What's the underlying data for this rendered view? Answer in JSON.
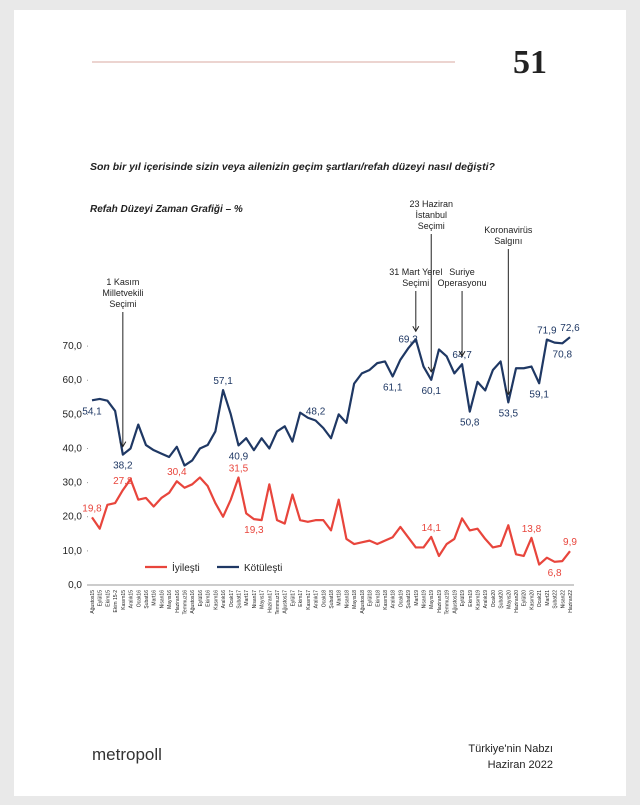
{
  "page_number": "51",
  "question": "Son bir yıl içerisinde sizin veya ailenizin geçim şartları/refah düzeyi nasıl değişti?",
  "footer": {
    "brand": "metropoll",
    "report": "Türkiye'nin Nabzı",
    "date": "Haziran 2022"
  },
  "chart_data": {
    "type": "line",
    "title": "Refah Düzeyi Zaman Grafiği – %",
    "categories": [
      "Ağustos15",
      "Eylül15",
      "Ekim15",
      "Ekim 15-2",
      "Kasım15",
      "Aralık15",
      "Ocak16",
      "Şubat16",
      "Mart16",
      "Nisan16",
      "Mayıs16",
      "Haziran16",
      "Temmuz16",
      "Ağustos16",
      "Eylül16",
      "Ekim16",
      "Kasım16",
      "Aralık16",
      "Ocak17",
      "Şubat17",
      "Mart17",
      "Nisan17",
      "Mayıs17",
      "Haziran17",
      "Temmuz17",
      "Ağustos17",
      "Eylül17",
      "Ekim17",
      "Kasım17",
      "Aralık17",
      "Ocak18",
      "Şubat18",
      "Mart18",
      "Nisan18",
      "Mayıs18",
      "Ağustos18",
      "Eylül18",
      "Ekim18",
      "Kasım18",
      "Aralık18",
      "Ocak19",
      "Şubat19",
      "Mart19",
      "Nisan19",
      "Mayıs19",
      "Haziran19",
      "Temmuz19",
      "Ağustos19",
      "Eylül19",
      "Ekim19",
      "Kasım19",
      "Aralık19",
      "Ocak20",
      "Şubat20",
      "Mayıs20",
      "Haziran20",
      "Eylül20",
      "Kasım20",
      "Ocak21",
      "Mart21",
      "Şubat22",
      "Nisan22",
      "Haziran22"
    ],
    "series": [
      {
        "name": "İyileşti",
        "color": "#e8453c",
        "values": [
          19.8,
          16.5,
          23.5,
          24,
          27.8,
          31,
          25,
          25.5,
          23,
          25.5,
          27,
          30.4,
          28.5,
          29.5,
          31.5,
          29,
          24,
          20,
          25,
          31.5,
          21,
          19.3,
          19,
          29.5,
          19,
          18,
          26.5,
          19,
          18.5,
          19,
          19,
          16,
          25,
          13.5,
          12,
          12.5,
          13,
          12,
          13,
          14,
          17,
          14,
          11,
          11,
          14.1,
          8.5,
          12,
          13.5,
          19.5,
          16,
          16.5,
          13.5,
          11,
          11.5,
          17.5,
          9,
          8.5,
          13.8,
          6,
          8,
          6.8,
          7,
          9.9
        ],
        "value_labels": [
          "19,8",
          null,
          null,
          null,
          "27,8",
          null,
          null,
          null,
          null,
          null,
          null,
          "30,4",
          null,
          null,
          null,
          null,
          null,
          null,
          null,
          "31,5",
          null,
          "19,3",
          null,
          null,
          null,
          null,
          null,
          null,
          null,
          null,
          null,
          null,
          null,
          null,
          null,
          null,
          null,
          null,
          null,
          null,
          null,
          null,
          null,
          null,
          "14,1",
          null,
          null,
          null,
          null,
          null,
          null,
          null,
          null,
          null,
          null,
          null,
          null,
          "13,8",
          null,
          null,
          "6,8",
          null,
          "9,9"
        ]
      },
      {
        "name": "Kötüleşti",
        "color": "#1f3864",
        "values": [
          54.1,
          54.5,
          54,
          51,
          38.2,
          40,
          47,
          41,
          39.5,
          38.5,
          37.5,
          40.5,
          35,
          36.5,
          40,
          41,
          45,
          57.1,
          50,
          40.9,
          43,
          39.5,
          43,
          40,
          45,
          46.5,
          42,
          50.5,
          49,
          48.2,
          46,
          43,
          50,
          47.5,
          59,
          62,
          63,
          65,
          65.5,
          61.1,
          66,
          69.3,
          72,
          64,
          60.1,
          69,
          67,
          62,
          64.7,
          50.8,
          59.5,
          57,
          63,
          65.5,
          53.5,
          63.5,
          63.5,
          64,
          59.1,
          71.9,
          71,
          70.8,
          72.6
        ],
        "value_labels": [
          "54,1",
          null,
          null,
          null,
          "38,2",
          null,
          null,
          null,
          null,
          null,
          null,
          null,
          null,
          null,
          null,
          null,
          null,
          "57,1",
          null,
          "40,9",
          null,
          null,
          null,
          null,
          null,
          null,
          null,
          null,
          null,
          "48,2",
          null,
          null,
          null,
          null,
          null,
          null,
          null,
          null,
          null,
          "61,1",
          null,
          "69,3",
          null,
          null,
          "60,1",
          null,
          null,
          null,
          "64,7",
          "50,8",
          null,
          null,
          null,
          null,
          "53,5",
          null,
          null,
          null,
          "59,1",
          "71,9",
          null,
          "70,8",
          "72,6"
        ]
      }
    ],
    "annotations": [
      [
        "1 Kasım",
        "Milletvekili",
        "Seçimi"
      ],
      [
        "31 Mart Yerel",
        "Seçimi"
      ],
      [
        "23 Haziran",
        "İstanbul",
        "Seçimi"
      ],
      [
        "Suriye",
        "Operasyonu"
      ],
      [
        "Koronavirüs",
        "Salgını"
      ]
    ],
    "ylim": [
      0,
      75
    ],
    "yticks": [
      {
        "value": 0,
        "label": "0,0"
      },
      {
        "value": 10,
        "label": "10,0"
      },
      {
        "value": 20,
        "label": "20,0"
      },
      {
        "value": 30,
        "label": "30,0"
      },
      {
        "value": 40,
        "label": "40,0"
      },
      {
        "value": 50,
        "label": "50,0"
      },
      {
        "value": 60,
        "label": "60,0"
      },
      {
        "value": 70,
        "label": "70,0"
      }
    ],
    "legend": "bottom-left"
  }
}
